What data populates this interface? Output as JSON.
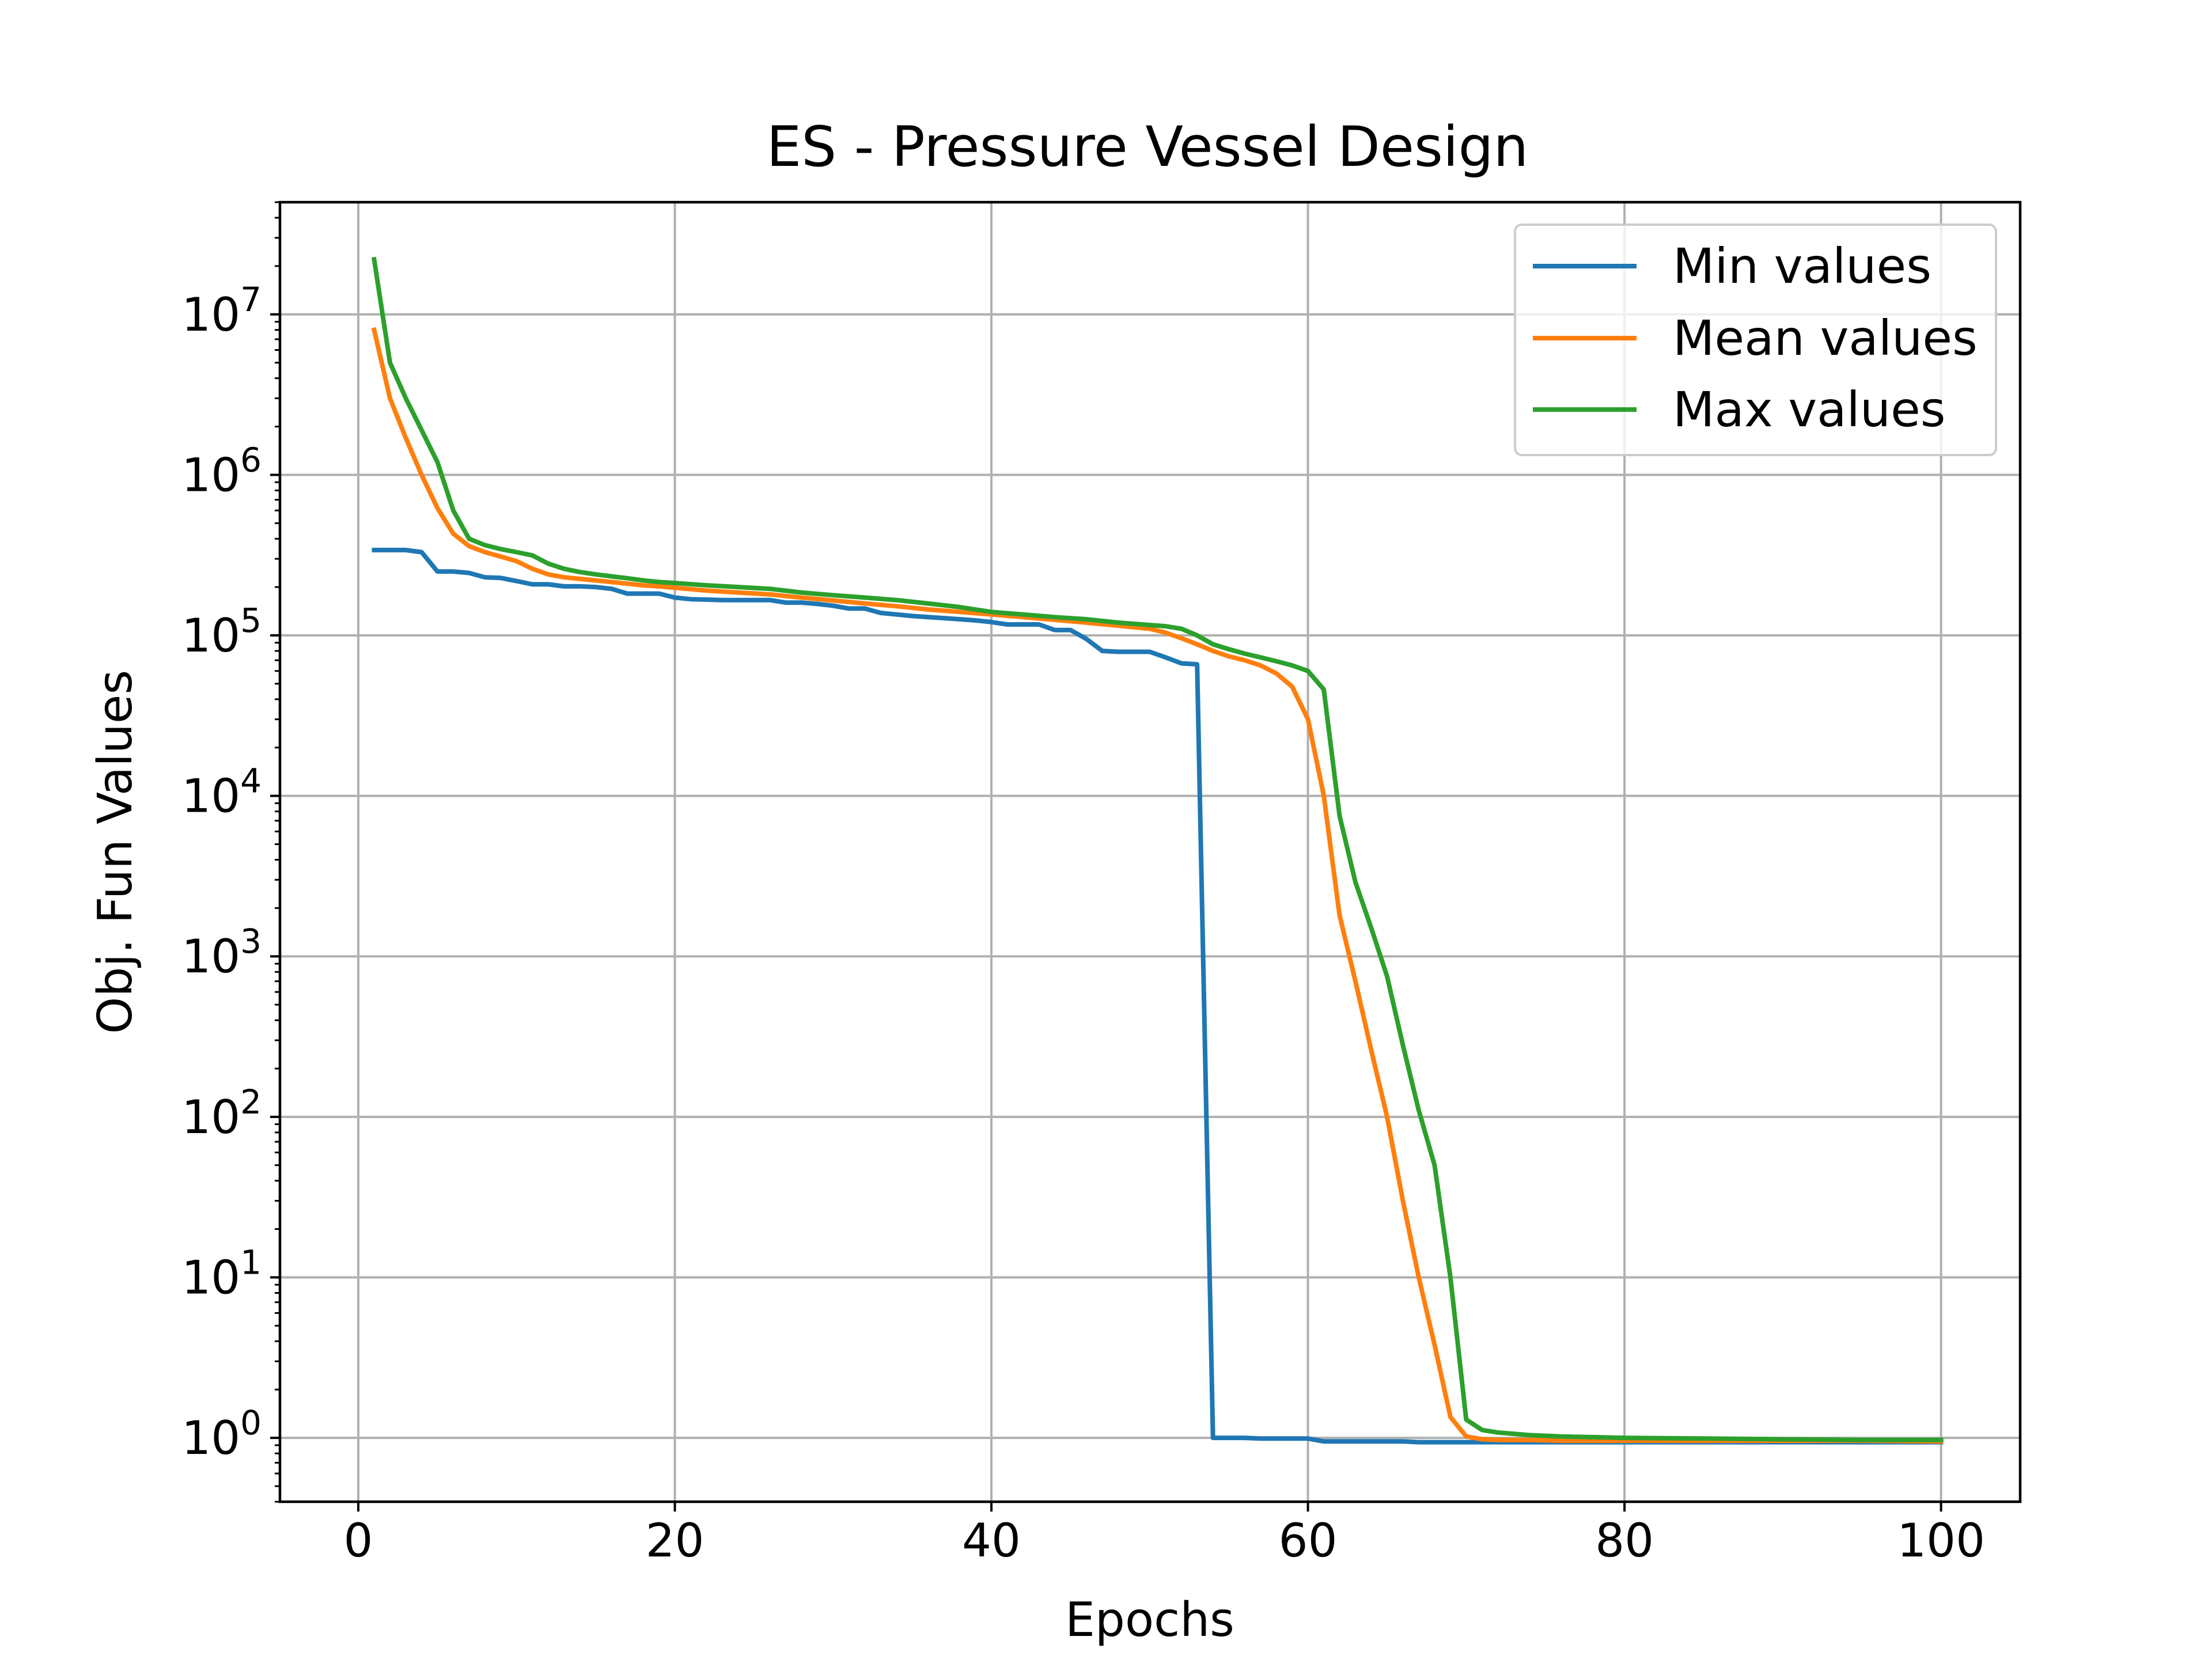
{
  "chart_data": {
    "type": "line",
    "title": "ES - Pressure Vessel Design",
    "xlabel": "Epochs",
    "ylabel": "Obj. Fun Values",
    "xlim": [
      -4.95,
      105
    ],
    "ylim": [
      0.4,
      50000000
    ],
    "y_scale": "log",
    "grid": true,
    "legend_position": "top-right",
    "x_ticks": [
      0,
      20,
      40,
      60,
      80,
      100
    ],
    "x_tick_labels": [
      "0",
      "20",
      "40",
      "60",
      "80",
      "100"
    ],
    "y_ticks": [
      1,
      10,
      100,
      1000,
      10000,
      100000,
      1000000,
      10000000
    ],
    "y_tick_labels": [
      {
        "base": "10",
        "exp": "0"
      },
      {
        "base": "10",
        "exp": "1"
      },
      {
        "base": "10",
        "exp": "2"
      },
      {
        "base": "10",
        "exp": "3"
      },
      {
        "base": "10",
        "exp": "4"
      },
      {
        "base": "10",
        "exp": "5"
      },
      {
        "base": "10",
        "exp": "6"
      },
      {
        "base": "10",
        "exp": "7"
      }
    ],
    "series": [
      {
        "name": "Min values",
        "color": "#1f77b4",
        "x": [
          1,
          2,
          3,
          4,
          5,
          6,
          7,
          8,
          9,
          10,
          11,
          12,
          13,
          14,
          15,
          16,
          17,
          18,
          19,
          20,
          21,
          22,
          23,
          24,
          25,
          26,
          27,
          28,
          29,
          30,
          31,
          32,
          33,
          34,
          35,
          36,
          37,
          38,
          39,
          40,
          41,
          42,
          43,
          44,
          45,
          46,
          47,
          48,
          49,
          50,
          51,
          52,
          53,
          54,
          55,
          56,
          57,
          58,
          59,
          60,
          61,
          62,
          63,
          64,
          65,
          66,
          67,
          68,
          69,
          70,
          72,
          75,
          80,
          85,
          90,
          95,
          100
        ],
        "y": [
          340000,
          340000,
          340000,
          330000,
          250000,
          250000,
          245000,
          230000,
          228000,
          218000,
          208000,
          208000,
          202000,
          202000,
          200000,
          195000,
          182000,
          182000,
          182000,
          172000,
          168000,
          167000,
          166000,
          166000,
          166000,
          166000,
          160000,
          160000,
          157000,
          153000,
          147000,
          147000,
          138000,
          135000,
          132000,
          130000,
          128000,
          126000,
          124000,
          121000,
          117000,
          117000,
          117000,
          108000,
          108000,
          95000,
          80000,
          79000,
          79000,
          79000,
          73000,
          67000,
          66000,
          1.0,
          1.0,
          1.0,
          0.99,
          0.99,
          0.99,
          0.99,
          0.95,
          0.95,
          0.95,
          0.95,
          0.95,
          0.95,
          0.94,
          0.94,
          0.94,
          0.94,
          0.94,
          0.94,
          0.94,
          0.94,
          0.94,
          0.94,
          0.94
        ]
      },
      {
        "name": "Mean values",
        "color": "#ff7f0e",
        "x": [
          1,
          2,
          3,
          4,
          5,
          6,
          7,
          8,
          9,
          10,
          11,
          12,
          13,
          14,
          15,
          16,
          17,
          18,
          19,
          20,
          22,
          24,
          26,
          28,
          30,
          32,
          34,
          36,
          38,
          40,
          42,
          44,
          46,
          48,
          50,
          51,
          52,
          53,
          54,
          55,
          56,
          57,
          58,
          59,
          60,
          61,
          62,
          63,
          64,
          65,
          66,
          67,
          68,
          69,
          70,
          71,
          72,
          74,
          76,
          80,
          85,
          90,
          95,
          100
        ],
        "y": [
          8000000,
          3000000,
          1700000,
          1000000,
          620000,
          430000,
          360000,
          330000,
          310000,
          290000,
          260000,
          240000,
          230000,
          225000,
          220000,
          215000,
          210000,
          205000,
          202000,
          198000,
          190000,
          185000,
          180000,
          172000,
          165000,
          158000,
          152000,
          145000,
          140000,
          135000,
          130000,
          125000,
          120000,
          115000,
          110000,
          104000,
          96000,
          88000,
          80000,
          74000,
          70000,
          65000,
          58000,
          48000,
          30000,
          10000,
          1800,
          700,
          260,
          100,
          30,
          10,
          3.8,
          1.35,
          1.02,
          0.98,
          0.97,
          0.97,
          0.96,
          0.96,
          0.96,
          0.96,
          0.96,
          0.95
        ]
      },
      {
        "name": "Max values",
        "color": "#2ca02c",
        "x": [
          1,
          2,
          3,
          4,
          5,
          6,
          7,
          8,
          9,
          10,
          11,
          12,
          13,
          14,
          15,
          16,
          17,
          18,
          19,
          20,
          22,
          24,
          26,
          28,
          30,
          32,
          34,
          36,
          38,
          40,
          42,
          44,
          46,
          48,
          50,
          51,
          52,
          53,
          54,
          55,
          56,
          57,
          58,
          59,
          60,
          61,
          62,
          63,
          64,
          65,
          66,
          67,
          68,
          69,
          70,
          71,
          72,
          74,
          76,
          80,
          85,
          90,
          95,
          100
        ],
        "y": [
          22000000,
          5000000,
          3000000,
          1900000,
          1200000,
          600000,
          400000,
          365000,
          345000,
          330000,
          315000,
          280000,
          260000,
          248000,
          240000,
          233000,
          227000,
          220000,
          215000,
          212000,
          205000,
          200000,
          195000,
          185000,
          178000,
          172000,
          166000,
          158000,
          150000,
          140000,
          135000,
          130000,
          126000,
          120000,
          116000,
          114000,
          110000,
          100000,
          88000,
          82000,
          77000,
          73000,
          69000,
          65000,
          60000,
          46000,
          7500,
          2900,
          1500,
          750,
          280,
          110,
          50,
          10,
          1.3,
          1.12,
          1.08,
          1.04,
          1.02,
          1.0,
          0.99,
          0.98,
          0.97,
          0.97
        ]
      }
    ]
  }
}
